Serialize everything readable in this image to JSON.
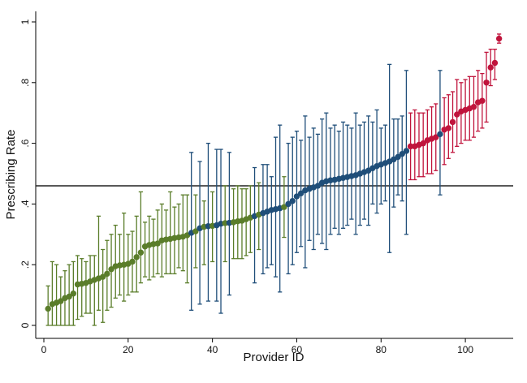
{
  "chart_data": {
    "type": "scatter",
    "xlabel": "Provider ID",
    "ylabel": "Prescribing Rate",
    "xlim": [
      0,
      110
    ],
    "ylim": [
      0,
      1
    ],
    "x_ticks": [
      "0",
      "20",
      "40",
      "60",
      "80",
      "100"
    ],
    "y_ticks": [
      "0",
      ".2",
      ".4",
      ".6",
      ".8",
      "1"
    ],
    "x_tick_values": [
      0,
      20,
      40,
      60,
      80,
      100
    ],
    "y_tick_values": [
      0,
      0.2,
      0.4,
      0.6,
      0.8,
      1
    ],
    "reference_line": 0.46,
    "grid": false,
    "colors": {
      "low": "#5a7d2a",
      "mid": "#1f4e79",
      "high": "#c0143c",
      "reference": "#222222",
      "axis": "#000000"
    },
    "points": [
      {
        "x": 1,
        "y": 0.055,
        "lo": 0.0,
        "hi": 0.13,
        "group": "low"
      },
      {
        "x": 2,
        "y": 0.07,
        "lo": 0.0,
        "hi": 0.21,
        "group": "low"
      },
      {
        "x": 3,
        "y": 0.075,
        "lo": 0.0,
        "hi": 0.2,
        "group": "low"
      },
      {
        "x": 4,
        "y": 0.08,
        "lo": 0.0,
        "hi": 0.16,
        "group": "low"
      },
      {
        "x": 5,
        "y": 0.09,
        "lo": 0.0,
        "hi": 0.18,
        "group": "low"
      },
      {
        "x": 6,
        "y": 0.095,
        "lo": 0.0,
        "hi": 0.2,
        "group": "low"
      },
      {
        "x": 7,
        "y": 0.105,
        "lo": 0.0,
        "hi": 0.21,
        "group": "low"
      },
      {
        "x": 8,
        "y": 0.135,
        "lo": 0.02,
        "hi": 0.23,
        "group": "low"
      },
      {
        "x": 9,
        "y": 0.137,
        "lo": 0.03,
        "hi": 0.22,
        "group": "low"
      },
      {
        "x": 10,
        "y": 0.14,
        "lo": 0.04,
        "hi": 0.21,
        "group": "low"
      },
      {
        "x": 11,
        "y": 0.145,
        "lo": 0.04,
        "hi": 0.23,
        "group": "low"
      },
      {
        "x": 12,
        "y": 0.15,
        "lo": 0.0,
        "hi": 0.23,
        "group": "low"
      },
      {
        "x": 13,
        "y": 0.155,
        "lo": 0.05,
        "hi": 0.36,
        "group": "low"
      },
      {
        "x": 14,
        "y": 0.16,
        "lo": 0.01,
        "hi": 0.25,
        "group": "low"
      },
      {
        "x": 15,
        "y": 0.17,
        "lo": 0.05,
        "hi": 0.28,
        "group": "low"
      },
      {
        "x": 16,
        "y": 0.185,
        "lo": 0.06,
        "hi": 0.3,
        "group": "low"
      },
      {
        "x": 17,
        "y": 0.195,
        "lo": 0.09,
        "hi": 0.33,
        "group": "low"
      },
      {
        "x": 18,
        "y": 0.198,
        "lo": 0.1,
        "hi": 0.3,
        "group": "low"
      },
      {
        "x": 19,
        "y": 0.2,
        "lo": 0.08,
        "hi": 0.37,
        "group": "low"
      },
      {
        "x": 20,
        "y": 0.203,
        "lo": 0.1,
        "hi": 0.3,
        "group": "low"
      },
      {
        "x": 21,
        "y": 0.21,
        "lo": 0.11,
        "hi": 0.31,
        "group": "low"
      },
      {
        "x": 22,
        "y": 0.225,
        "lo": 0.11,
        "hi": 0.36,
        "group": "low"
      },
      {
        "x": 23,
        "y": 0.24,
        "lo": 0.14,
        "hi": 0.44,
        "group": "low"
      },
      {
        "x": 24,
        "y": 0.26,
        "lo": 0.16,
        "hi": 0.34,
        "group": "low"
      },
      {
        "x": 25,
        "y": 0.265,
        "lo": 0.15,
        "hi": 0.36,
        "group": "low"
      },
      {
        "x": 26,
        "y": 0.268,
        "lo": 0.16,
        "hi": 0.35,
        "group": "low"
      },
      {
        "x": 27,
        "y": 0.27,
        "lo": 0.17,
        "hi": 0.38,
        "group": "low"
      },
      {
        "x": 28,
        "y": 0.28,
        "lo": 0.16,
        "hi": 0.4,
        "group": "low"
      },
      {
        "x": 29,
        "y": 0.283,
        "lo": 0.17,
        "hi": 0.38,
        "group": "low"
      },
      {
        "x": 30,
        "y": 0.285,
        "lo": 0.17,
        "hi": 0.44,
        "group": "low"
      },
      {
        "x": 31,
        "y": 0.288,
        "lo": 0.17,
        "hi": 0.39,
        "group": "low"
      },
      {
        "x": 32,
        "y": 0.29,
        "lo": 0.19,
        "hi": 0.4,
        "group": "low"
      },
      {
        "x": 33,
        "y": 0.292,
        "lo": 0.18,
        "hi": 0.43,
        "group": "low"
      },
      {
        "x": 34,
        "y": 0.297,
        "lo": 0.14,
        "hi": 0.43,
        "group": "low"
      },
      {
        "x": 35,
        "y": 0.305,
        "lo": 0.05,
        "hi": 0.57,
        "group": "mid"
      },
      {
        "x": 36,
        "y": 0.31,
        "lo": 0.19,
        "hi": 0.43,
        "group": "low"
      },
      {
        "x": 37,
        "y": 0.32,
        "lo": 0.07,
        "hi": 0.54,
        "group": "mid"
      },
      {
        "x": 38,
        "y": 0.325,
        "lo": 0.2,
        "hi": 0.41,
        "group": "low"
      },
      {
        "x": 39,
        "y": 0.327,
        "lo": 0.08,
        "hi": 0.6,
        "group": "mid"
      },
      {
        "x": 40,
        "y": 0.328,
        "lo": 0.21,
        "hi": 0.44,
        "group": "low"
      },
      {
        "x": 41,
        "y": 0.33,
        "lo": 0.08,
        "hi": 0.58,
        "group": "mid"
      },
      {
        "x": 42,
        "y": 0.335,
        "lo": 0.04,
        "hi": 0.58,
        "group": "mid"
      },
      {
        "x": 43,
        "y": 0.337,
        "lo": 0.21,
        "hi": 0.46,
        "group": "low"
      },
      {
        "x": 44,
        "y": 0.338,
        "lo": 0.1,
        "hi": 0.57,
        "group": "mid"
      },
      {
        "x": 45,
        "y": 0.34,
        "lo": 0.22,
        "hi": 0.45,
        "group": "low"
      },
      {
        "x": 46,
        "y": 0.343,
        "lo": 0.22,
        "hi": 0.46,
        "group": "low"
      },
      {
        "x": 47,
        "y": 0.345,
        "lo": 0.22,
        "hi": 0.45,
        "group": "low"
      },
      {
        "x": 48,
        "y": 0.35,
        "lo": 0.23,
        "hi": 0.45,
        "group": "low"
      },
      {
        "x": 49,
        "y": 0.355,
        "lo": 0.24,
        "hi": 0.46,
        "group": "low"
      },
      {
        "x": 50,
        "y": 0.36,
        "lo": 0.14,
        "hi": 0.52,
        "group": "mid"
      },
      {
        "x": 51,
        "y": 0.365,
        "lo": 0.25,
        "hi": 0.47,
        "group": "low"
      },
      {
        "x": 52,
        "y": 0.37,
        "lo": 0.17,
        "hi": 0.53,
        "group": "mid"
      },
      {
        "x": 53,
        "y": 0.375,
        "lo": 0.19,
        "hi": 0.53,
        "group": "mid"
      },
      {
        "x": 54,
        "y": 0.38,
        "lo": 0.2,
        "hi": 0.49,
        "group": "mid"
      },
      {
        "x": 55,
        "y": 0.383,
        "lo": 0.16,
        "hi": 0.62,
        "group": "mid"
      },
      {
        "x": 56,
        "y": 0.386,
        "lo": 0.11,
        "hi": 0.66,
        "group": "mid"
      },
      {
        "x": 57,
        "y": 0.39,
        "lo": 0.29,
        "hi": 0.49,
        "group": "low"
      },
      {
        "x": 58,
        "y": 0.4,
        "lo": 0.17,
        "hi": 0.6,
        "group": "mid"
      },
      {
        "x": 59,
        "y": 0.41,
        "lo": 0.2,
        "hi": 0.62,
        "group": "mid"
      },
      {
        "x": 60,
        "y": 0.425,
        "lo": 0.24,
        "hi": 0.64,
        "group": "mid"
      },
      {
        "x": 61,
        "y": 0.435,
        "lo": 0.26,
        "hi": 0.61,
        "group": "mid"
      },
      {
        "x": 62,
        "y": 0.445,
        "lo": 0.19,
        "hi": 0.69,
        "group": "mid"
      },
      {
        "x": 63,
        "y": 0.45,
        "lo": 0.28,
        "hi": 0.62,
        "group": "mid"
      },
      {
        "x": 64,
        "y": 0.455,
        "lo": 0.25,
        "hi": 0.65,
        "group": "mid"
      },
      {
        "x": 65,
        "y": 0.46,
        "lo": 0.3,
        "hi": 0.63,
        "group": "mid"
      },
      {
        "x": 66,
        "y": 0.47,
        "lo": 0.27,
        "hi": 0.68,
        "group": "mid"
      },
      {
        "x": 67,
        "y": 0.475,
        "lo": 0.25,
        "hi": 0.7,
        "group": "mid"
      },
      {
        "x": 68,
        "y": 0.478,
        "lo": 0.3,
        "hi": 0.65,
        "group": "mid"
      },
      {
        "x": 69,
        "y": 0.48,
        "lo": 0.32,
        "hi": 0.66,
        "group": "mid"
      },
      {
        "x": 70,
        "y": 0.483,
        "lo": 0.3,
        "hi": 0.64,
        "group": "mid"
      },
      {
        "x": 71,
        "y": 0.486,
        "lo": 0.32,
        "hi": 0.67,
        "group": "mid"
      },
      {
        "x": 72,
        "y": 0.489,
        "lo": 0.33,
        "hi": 0.66,
        "group": "mid"
      },
      {
        "x": 73,
        "y": 0.492,
        "lo": 0.35,
        "hi": 0.65,
        "group": "mid"
      },
      {
        "x": 74,
        "y": 0.495,
        "lo": 0.3,
        "hi": 0.7,
        "group": "mid"
      },
      {
        "x": 75,
        "y": 0.5,
        "lo": 0.33,
        "hi": 0.66,
        "group": "mid"
      },
      {
        "x": 76,
        "y": 0.505,
        "lo": 0.35,
        "hi": 0.67,
        "group": "mid"
      },
      {
        "x": 77,
        "y": 0.51,
        "lo": 0.33,
        "hi": 0.69,
        "group": "mid"
      },
      {
        "x": 78,
        "y": 0.518,
        "lo": 0.4,
        "hi": 0.67,
        "group": "mid"
      },
      {
        "x": 79,
        "y": 0.525,
        "lo": 0.37,
        "hi": 0.71,
        "group": "mid"
      },
      {
        "x": 80,
        "y": 0.53,
        "lo": 0.4,
        "hi": 0.65,
        "group": "mid"
      },
      {
        "x": 81,
        "y": 0.535,
        "lo": 0.41,
        "hi": 0.66,
        "group": "mid"
      },
      {
        "x": 82,
        "y": 0.54,
        "lo": 0.24,
        "hi": 0.86,
        "group": "mid"
      },
      {
        "x": 83,
        "y": 0.547,
        "lo": 0.39,
        "hi": 0.68,
        "group": "mid"
      },
      {
        "x": 84,
        "y": 0.555,
        "lo": 0.43,
        "hi": 0.68,
        "group": "mid"
      },
      {
        "x": 85,
        "y": 0.565,
        "lo": 0.41,
        "hi": 0.69,
        "group": "mid"
      },
      {
        "x": 86,
        "y": 0.575,
        "lo": 0.3,
        "hi": 0.84,
        "group": "mid"
      },
      {
        "x": 87,
        "y": 0.59,
        "lo": 0.48,
        "hi": 0.7,
        "group": "high"
      },
      {
        "x": 88,
        "y": 0.59,
        "lo": 0.48,
        "hi": 0.71,
        "group": "high"
      },
      {
        "x": 89,
        "y": 0.595,
        "lo": 0.49,
        "hi": 0.7,
        "group": "high"
      },
      {
        "x": 90,
        "y": 0.6,
        "lo": 0.49,
        "hi": 0.7,
        "group": "high"
      },
      {
        "x": 91,
        "y": 0.61,
        "lo": 0.5,
        "hi": 0.71,
        "group": "high"
      },
      {
        "x": 92,
        "y": 0.615,
        "lo": 0.5,
        "hi": 0.72,
        "group": "high"
      },
      {
        "x": 93,
        "y": 0.62,
        "lo": 0.51,
        "hi": 0.73,
        "group": "high"
      },
      {
        "x": 94,
        "y": 0.63,
        "lo": 0.43,
        "hi": 0.84,
        "group": "mid"
      },
      {
        "x": 95,
        "y": 0.645,
        "lo": 0.53,
        "hi": 0.75,
        "group": "high"
      },
      {
        "x": 96,
        "y": 0.65,
        "lo": 0.55,
        "hi": 0.76,
        "group": "high"
      },
      {
        "x": 97,
        "y": 0.67,
        "lo": 0.57,
        "hi": 0.77,
        "group": "high"
      },
      {
        "x": 98,
        "y": 0.695,
        "lo": 0.59,
        "hi": 0.81,
        "group": "high"
      },
      {
        "x": 99,
        "y": 0.705,
        "lo": 0.6,
        "hi": 0.8,
        "group": "high"
      },
      {
        "x": 100,
        "y": 0.71,
        "lo": 0.61,
        "hi": 0.81,
        "group": "high"
      },
      {
        "x": 101,
        "y": 0.715,
        "lo": 0.61,
        "hi": 0.82,
        "group": "high"
      },
      {
        "x": 102,
        "y": 0.72,
        "lo": 0.62,
        "hi": 0.82,
        "group": "high"
      },
      {
        "x": 103,
        "y": 0.735,
        "lo": 0.64,
        "hi": 0.84,
        "group": "high"
      },
      {
        "x": 104,
        "y": 0.74,
        "lo": 0.65,
        "hi": 0.83,
        "group": "high"
      },
      {
        "x": 105,
        "y": 0.8,
        "lo": 0.67,
        "hi": 0.9,
        "group": "high"
      },
      {
        "x": 106,
        "y": 0.85,
        "lo": 0.79,
        "hi": 0.91,
        "group": "high"
      },
      {
        "x": 107,
        "y": 0.865,
        "lo": 0.81,
        "hi": 0.91,
        "group": "high"
      },
      {
        "x": 108,
        "y": 0.945,
        "lo": 0.93,
        "hi": 0.96,
        "group": "high"
      }
    ]
  }
}
